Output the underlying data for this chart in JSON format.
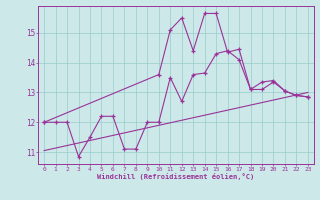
{
  "xlabel": "Windchill (Refroidissement éolien,°C)",
  "background_color": "#cce8e8",
  "grid_color": "#99cccc",
  "line_color": "#993399",
  "x_ticks": [
    0,
    1,
    2,
    3,
    4,
    5,
    6,
    7,
    8,
    9,
    10,
    11,
    12,
    13,
    14,
    15,
    16,
    17,
    18,
    19,
    20,
    21,
    22,
    23
  ],
  "y_ticks": [
    11,
    12,
    13,
    14,
    15
  ],
  "ylim": [
    10.6,
    15.9
  ],
  "xlim": [
    -0.5,
    23.5
  ],
  "series1_x": [
    0,
    1,
    2,
    3,
    4,
    5,
    6,
    7,
    8,
    9,
    10,
    11,
    12,
    13,
    14,
    15,
    16,
    17,
    18,
    19,
    20,
    21,
    22,
    23
  ],
  "series1_y": [
    12.0,
    12.0,
    12.0,
    10.85,
    11.5,
    12.2,
    12.2,
    11.1,
    11.1,
    12.0,
    12.0,
    13.5,
    12.7,
    13.6,
    13.65,
    14.3,
    14.4,
    14.1,
    13.1,
    13.35,
    13.4,
    13.05,
    12.9,
    12.85
  ],
  "series2_x": [
    0,
    10,
    11,
    12,
    13,
    14,
    15,
    16,
    17,
    18,
    19,
    20,
    21,
    22,
    23
  ],
  "series2_y": [
    12.0,
    13.6,
    15.1,
    15.5,
    14.4,
    15.65,
    15.65,
    14.35,
    14.45,
    13.1,
    13.1,
    13.35,
    13.05,
    12.9,
    12.85
  ],
  "line1_x": [
    0,
    23
  ],
  "line1_y": [
    11.05,
    13.0
  ]
}
